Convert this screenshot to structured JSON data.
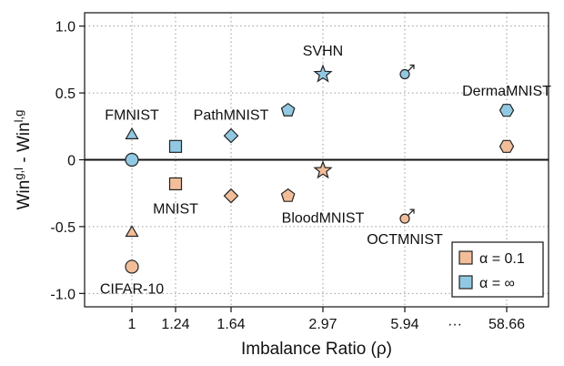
{
  "chart_data": {
    "type": "scatter",
    "title": "",
    "xlabel": "Imbalance Ratio (ρ)",
    "ylabel": {
      "base1": "Win",
      "sup1": "g,l",
      "mid": " - Win",
      "sup2": "l,g"
    },
    "ylim": [
      -1.1,
      1.1
    ],
    "yticks": [
      1.0,
      0.5,
      0,
      -0.5,
      -1.0
    ],
    "ytick_labels": [
      "1.0",
      "0.5",
      "0",
      "-0.5",
      "-1.0"
    ],
    "x_categories": [
      "1",
      "1.24",
      "1.64",
      "2.97",
      "5.94",
      "···",
      "58.66"
    ],
    "grid": true,
    "zero_line": true,
    "legend_position": "bottom-right",
    "colors": {
      "alpha_0_1": "#f2be9a",
      "alpha_inf": "#92c9e2"
    },
    "series": [
      {
        "name": "α = 0.1",
        "color_key": "alpha_0_1"
      },
      {
        "name": "α = ∞",
        "color_key": "alpha_inf"
      }
    ],
    "points": [
      {
        "dataset": "CIFAR-10",
        "x": "1",
        "series": 0,
        "y": -0.8,
        "marker": "circle"
      },
      {
        "dataset": "CIFAR-10",
        "x": "1",
        "series": 1,
        "y": 0.0,
        "marker": "circle"
      },
      {
        "dataset": "FMNIST",
        "x": "1",
        "series": 0,
        "y": -0.54,
        "marker": "triangle"
      },
      {
        "dataset": "FMNIST",
        "x": "1",
        "series": 1,
        "y": 0.19,
        "marker": "triangle"
      },
      {
        "dataset": "MNIST",
        "x": "1.24",
        "series": 0,
        "y": -0.18,
        "marker": "square"
      },
      {
        "dataset": "MNIST",
        "x": "1.24",
        "series": 1,
        "y": 0.1,
        "marker": "square"
      },
      {
        "dataset": "PathMNIST",
        "x": "1.64",
        "series": 0,
        "y": -0.27,
        "marker": "diamond"
      },
      {
        "dataset": "PathMNIST",
        "x": "1.64",
        "series": 1,
        "y": 0.18,
        "marker": "diamond"
      },
      {
        "dataset": "BloodMNIST",
        "x": "2.97",
        "series": 0,
        "y": -0.27,
        "marker": "pentagon",
        "offset": -0.38
      },
      {
        "dataset": "BloodMNIST",
        "x": "2.97",
        "series": 1,
        "y": 0.37,
        "marker": "pentagon",
        "offset": -0.38
      },
      {
        "dataset": "SVHN",
        "x": "2.97",
        "series": 0,
        "y": -0.08,
        "marker": "star"
      },
      {
        "dataset": "SVHN",
        "x": "2.97",
        "series": 1,
        "y": 0.64,
        "marker": "star"
      },
      {
        "dataset": "OCTMNIST",
        "x": "5.94",
        "series": 0,
        "y": -0.44,
        "marker": "male"
      },
      {
        "dataset": "OCTMNIST",
        "x": "5.94",
        "series": 1,
        "y": 0.64,
        "marker": "male"
      },
      {
        "dataset": "DermaMNIST",
        "x": "58.66",
        "series": 0,
        "y": 0.1,
        "marker": "hexagon"
      },
      {
        "dataset": "DermaMNIST",
        "x": "58.66",
        "series": 1,
        "y": 0.37,
        "marker": "hexagon"
      }
    ],
    "annotations": [
      {
        "text": "CIFAR-10",
        "x": "1",
        "y": -0.96
      },
      {
        "text": "FMNIST",
        "x": "1",
        "y": 0.34
      },
      {
        "text": "MNIST",
        "x": "1.24",
        "y": -0.36
      },
      {
        "text": "PathMNIST",
        "x": "1.64",
        "y": 0.34
      },
      {
        "text": "SVHN",
        "x": "2.97",
        "y": 0.82
      },
      {
        "text": "BloodMNIST",
        "x": "2.97",
        "y": -0.43
      },
      {
        "text": "OCTMNIST",
        "x": "5.94",
        "y": -0.59
      },
      {
        "text": "DermaMNIST",
        "x": "58.66",
        "y": 0.52
      }
    ]
  }
}
